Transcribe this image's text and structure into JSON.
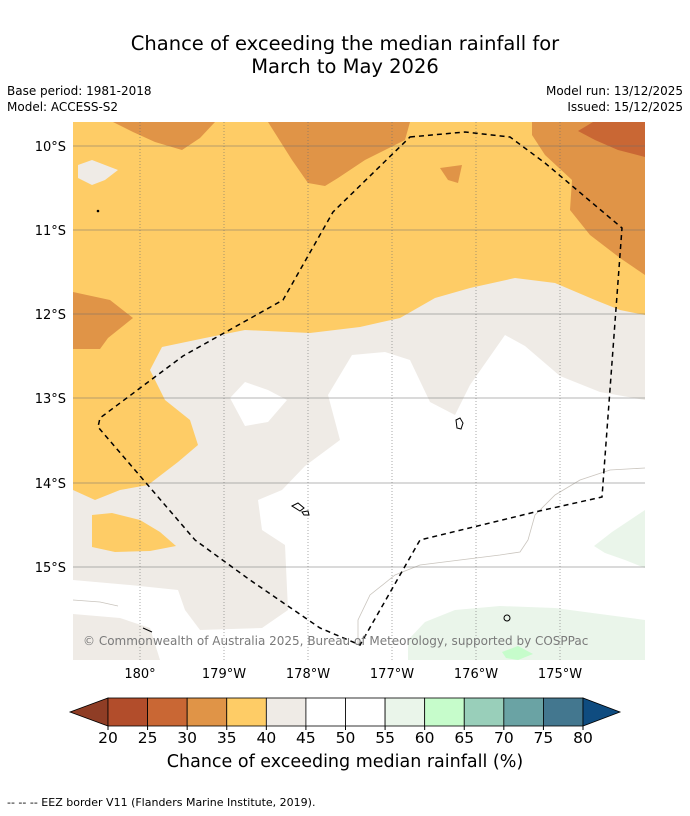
{
  "title": {
    "line1": "Chance of exceeding the median rainfall for",
    "line2": "March to May 2026"
  },
  "meta": {
    "base_period": "Base period: 1981-2018",
    "model": "Model: ACCESS-S2",
    "model_run": "Model run: 13/12/2025",
    "issued": "Issued: 15/12/2025"
  },
  "map": {
    "lat_labels": [
      "10°S",
      "11°S",
      "12°S",
      "13°S",
      "14°S",
      "15°S"
    ],
    "lon_labels": [
      "180°",
      "179°W",
      "178°W",
      "177°W",
      "176°W",
      "175°W"
    ],
    "copyright": "© Commonwealth of Australia 2025, Bureau of Meteorology, supported by COSPPac",
    "layers": [
      {
        "name": "category-40-45",
        "color": "#efebe6"
      },
      {
        "name": "category-35-40",
        "color": "#fecc66"
      },
      {
        "name": "category-30-35",
        "color": "#e09447"
      },
      {
        "name": "category-25-30",
        "color": "#c96734"
      },
      {
        "name": "category-55-60",
        "color": "#eaf5ea"
      },
      {
        "name": "category-60-65",
        "color": "#c6fccb"
      }
    ]
  },
  "colorbar": {
    "colors": [
      "#8f3d25",
      "#b24d2b",
      "#c96734",
      "#e09447",
      "#fecc66",
      "#efebe6",
      "#ffffff",
      "#ffffff",
      "#eaf5ea",
      "#c6fccb",
      "#99cfba",
      "#6aa3a4",
      "#43778f",
      "#0f4c80"
    ],
    "ticks": [
      "20",
      "25",
      "30",
      "35",
      "40",
      "45",
      "50",
      "55",
      "60",
      "65",
      "70",
      "75",
      "80"
    ],
    "label": "Chance of exceeding median rainfall (%)"
  },
  "footnote": "--  --  -- EEZ border V11 (Flanders Marine Institute, 2019)."
}
